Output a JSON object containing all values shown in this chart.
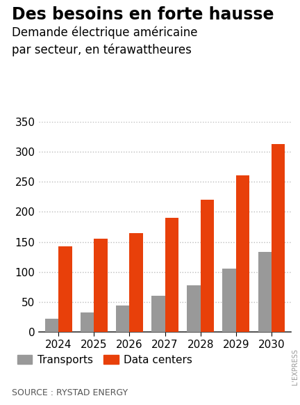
{
  "title": "Des besoins en forte hausse",
  "subtitle": "Demande électrique américaine\npar secteur, en térawattheures",
  "years": [
    2024,
    2025,
    2026,
    2027,
    2028,
    2029,
    2030
  ],
  "transports": [
    22,
    33,
    44,
    60,
    78,
    105,
    133
  ],
  "data_centers": [
    142,
    155,
    165,
    190,
    220,
    260,
    312
  ],
  "transport_color": "#999999",
  "datacenter_color": "#E8400A",
  "ylim": [
    0,
    350
  ],
  "yticks": [
    0,
    50,
    100,
    150,
    200,
    250,
    300,
    350
  ],
  "source": "SOURCE : RYSTAD ENERGY",
  "legend_transports": "Transports",
  "legend_datacenters": "Data centers",
  "background_color": "#ffffff",
  "grid_color": "#bbbbbb",
  "bar_width": 0.38,
  "title_fontsize": 17,
  "subtitle_fontsize": 12,
  "tick_fontsize": 11,
  "legend_fontsize": 11,
  "source_fontsize": 9
}
